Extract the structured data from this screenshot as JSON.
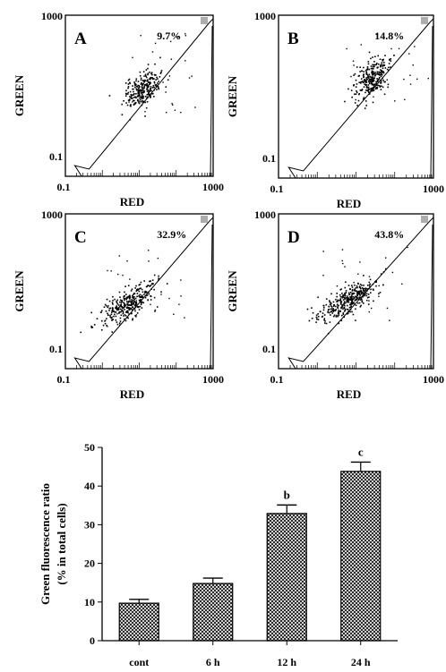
{
  "chart_data": [
    {
      "type": "scatter",
      "panel": "A",
      "xlabel": "RED",
      "ylabel": "GREEN",
      "x_ticks": [
        "0.1",
        "1000"
      ],
      "y_ticks": [
        "1000",
        "0.1"
      ],
      "xlim": [
        0.1,
        1000
      ],
      "ylim": [
        0.1,
        1000
      ],
      "scale": "log",
      "percent_label": "9.7%",
      "cluster": {
        "center": [
          12,
          15
        ],
        "spread": [
          0.22,
          0.2
        ],
        "count": 260
      }
    },
    {
      "type": "scatter",
      "panel": "B",
      "xlabel": "RED",
      "ylabel": "GREEN",
      "x_ticks": [
        "0.1",
        "1000"
      ],
      "y_ticks": [
        "1000",
        "0.1"
      ],
      "xlim": [
        0.1,
        1000
      ],
      "ylim": [
        0.1,
        1000
      ],
      "scale": "log",
      "percent_label": "14.8%",
      "cluster": {
        "center": [
          25,
          28
        ],
        "spread": [
          0.2,
          0.22
        ],
        "count": 280
      }
    },
    {
      "type": "scatter",
      "panel": "C",
      "xlabel": "RED",
      "ylabel": "GREEN",
      "x_ticks": [
        "0.1",
        "1000"
      ],
      "y_ticks": [
        "1000",
        "0.1"
      ],
      "xlim": [
        0.1,
        1000
      ],
      "ylim": [
        0.1,
        1000
      ],
      "scale": "log",
      "percent_label": "32.9%",
      "cluster": {
        "center": [
          5,
          5
        ],
        "spread": [
          0.35,
          0.18
        ],
        "count": 320
      }
    },
    {
      "type": "scatter",
      "panel": "D",
      "xlabel": "RED",
      "ylabel": "GREEN",
      "x_ticks": [
        "0.1",
        "1000"
      ],
      "y_ticks": [
        "1000",
        "0.1"
      ],
      "xlim": [
        0.1,
        1000
      ],
      "ylim": [
        0.1,
        1000
      ],
      "scale": "log",
      "percent_label": "43.8%",
      "cluster": {
        "center": [
          6,
          6
        ],
        "spread": [
          0.35,
          0.18
        ],
        "count": 340
      }
    },
    {
      "type": "bar",
      "categories": [
        "cont",
        "6 h",
        "12 h",
        "24 h"
      ],
      "values": [
        9.7,
        14.8,
        32.9,
        43.8
      ],
      "errors": [
        1.0,
        1.4,
        2.2,
        2.4
      ],
      "significance": [
        "",
        "",
        "b",
        "c"
      ],
      "ylabel": "Green fluorescence ratio",
      "ylabel2": "(% in total cells)",
      "ylim": [
        0,
        50
      ],
      "y_ticks": [
        0,
        10,
        20,
        30,
        40,
        50
      ],
      "bar_fill": "crosshatch"
    }
  ]
}
